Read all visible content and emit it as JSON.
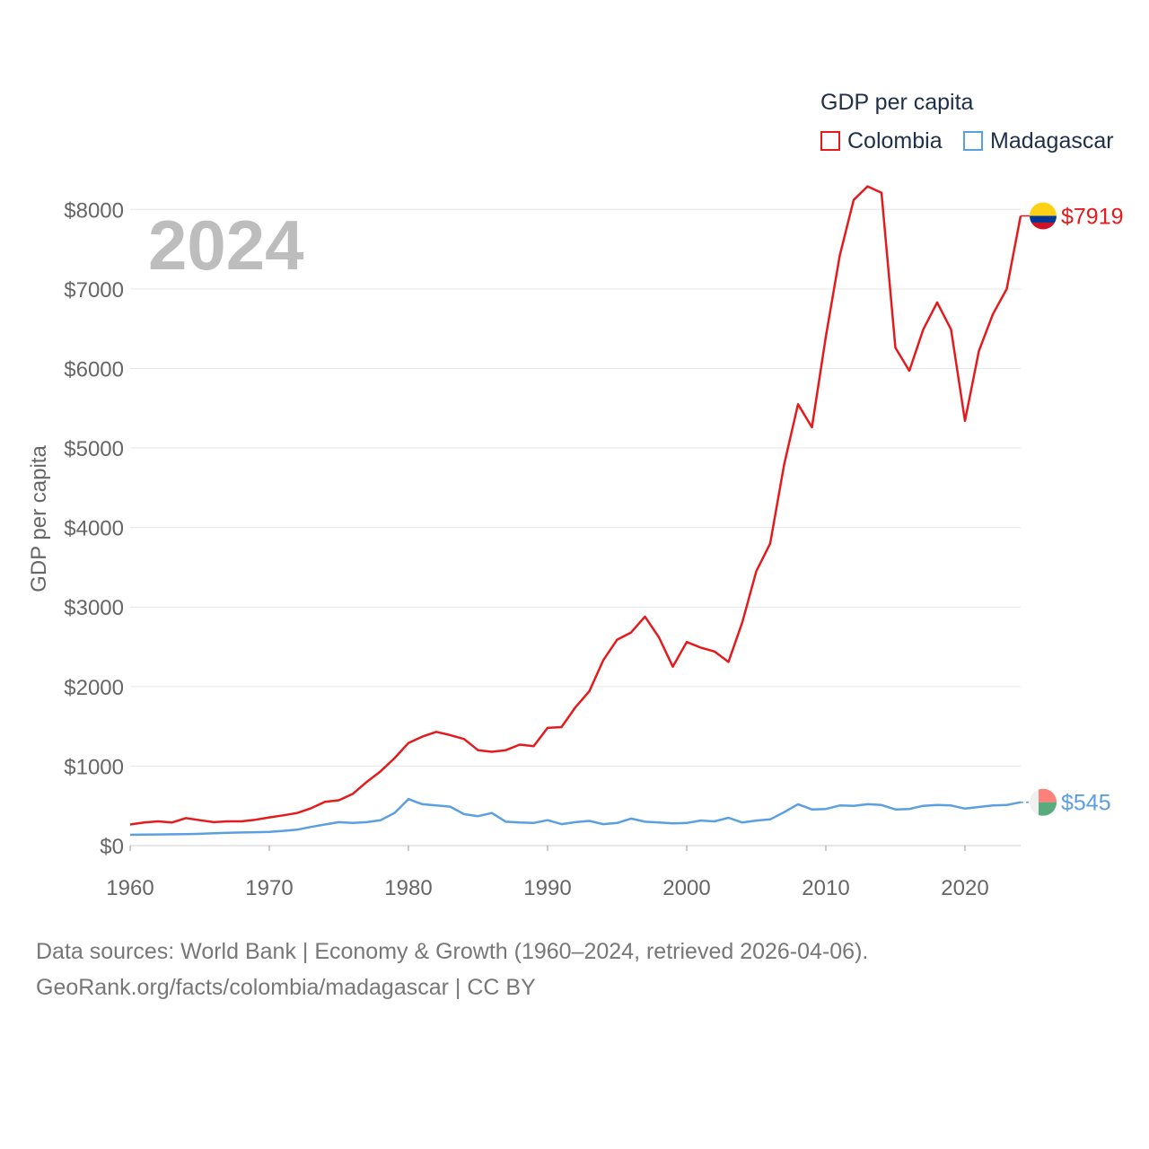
{
  "chart_data": {
    "type": "line",
    "year_label": "2024",
    "ylabel": "GDP per capita",
    "xlabel": "",
    "xlim": [
      1960,
      2024
    ],
    "ylim": [
      0,
      8500
    ],
    "x_ticks": [
      1960,
      1970,
      1980,
      1990,
      2000,
      2010,
      2020
    ],
    "y_ticks": [
      0,
      1000,
      2000,
      3000,
      4000,
      5000,
      6000,
      7000,
      8000
    ],
    "y_tick_labels": [
      "$0",
      "$1000",
      "$2000",
      "$3000",
      "$4000",
      "$5000",
      "$6000",
      "$7000",
      "$8000"
    ],
    "grid": true,
    "legend": {
      "title": "GDP per capita",
      "placement": "top-right"
    },
    "x": [
      1960,
      1961,
      1962,
      1963,
      1964,
      1965,
      1966,
      1967,
      1968,
      1969,
      1970,
      1971,
      1972,
      1973,
      1974,
      1975,
      1976,
      1977,
      1978,
      1979,
      1980,
      1981,
      1982,
      1983,
      1984,
      1985,
      1986,
      1987,
      1988,
      1989,
      1990,
      1991,
      1992,
      1993,
      1994,
      1995,
      1996,
      1997,
      1998,
      1999,
      2000,
      2001,
      2002,
      2003,
      2004,
      2005,
      2006,
      2007,
      2008,
      2009,
      2010,
      2011,
      2012,
      2013,
      2014,
      2015,
      2016,
      2017,
      2018,
      2019,
      2020,
      2021,
      2022,
      2023,
      2024
    ],
    "series": [
      {
        "name": "Colombia",
        "color": "#e41a1c",
        "end_label": "$7919",
        "flag": "colombia-flag-icon",
        "values": [
          265,
          290,
          305,
          290,
          345,
          320,
          295,
          305,
          305,
          325,
          355,
          380,
          410,
          470,
          550,
          570,
          650,
          800,
          935,
          1100,
          1290,
          1370,
          1430,
          1390,
          1340,
          1200,
          1180,
          1200,
          1270,
          1250,
          1480,
          1490,
          1740,
          1940,
          2330,
          2590,
          2680,
          2880,
          2620,
          2250,
          2560,
          2490,
          2440,
          2310,
          2810,
          3450,
          3800,
          4790,
          5550,
          5260,
          6400,
          7420,
          8120,
          8290,
          8210,
          6260,
          5970,
          6490,
          6830,
          6490,
          5340,
          6220,
          6680,
          7000,
          7919
        ]
      },
      {
        "name": "Madagascar",
        "color": "#5b9fe3",
        "end_label": "$545",
        "flag": "madagascar-flag-icon",
        "values": [
          135,
          138,
          140,
          142,
          145,
          148,
          155,
          160,
          165,
          168,
          172,
          185,
          200,
          235,
          265,
          295,
          285,
          295,
          320,
          410,
          585,
          520,
          505,
          490,
          395,
          370,
          410,
          300,
          290,
          285,
          320,
          270,
          295,
          310,
          270,
          285,
          340,
          300,
          290,
          280,
          285,
          315,
          305,
          350,
          290,
          315,
          330,
          420,
          520,
          455,
          460,
          505,
          500,
          520,
          510,
          455,
          460,
          500,
          510,
          505,
          465,
          485,
          505,
          510,
          545
        ]
      }
    ]
  },
  "source_lines": [
    "Data sources: World Bank | Economy & Growth (1960–2024, retrieved 2026-04-06).",
    "GeoRank.org/facts/colombia/madagascar | CC BY"
  ]
}
